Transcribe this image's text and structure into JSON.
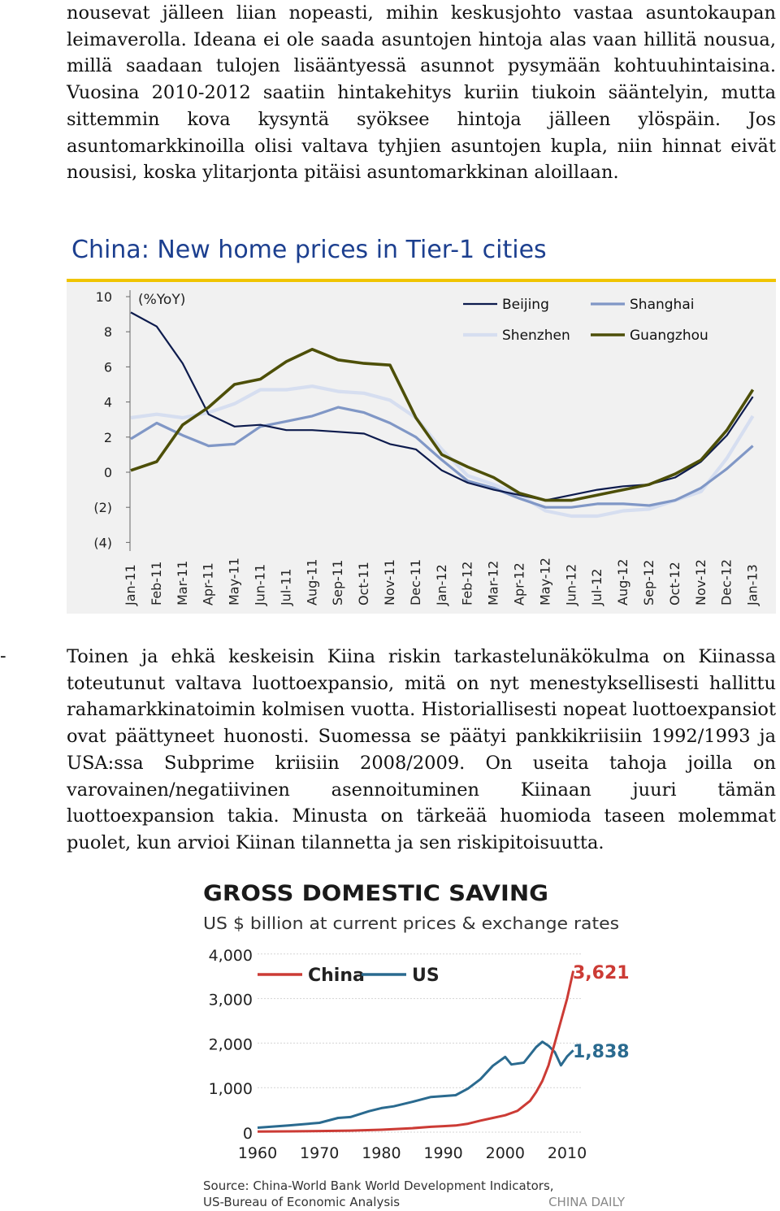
{
  "paragraph1": "nousevat jälleen liian nopeasti, mihin keskusjohto vastaa asuntokaupan leimaverolla. Ideana ei ole saada asuntojen hintoja alas vaan hillitä nousua, millä saadaan tulojen lisääntyessä asunnot pysymään kohtuuhintaisina. Vuosina 2010-2012 saatiin hintakehitys kuriin tiukoin sääntelyin, mutta sittemmin kova kysyntä syöksee hintoja jälleen ylöspäin. Jos asuntomarkkinoilla olisi valtava tyhjien asuntojen kupla, niin hinnat eivät nousisi, koska ylitarjonta pitäisi asuntomarkkinan aloillaan.",
  "bullet_dash": "-",
  "paragraph2": "Toinen ja ehkä keskeisin Kiina riskin tarkastelunäkökulma on Kiinassa toteutunut valtava luottoexpansio, mitä on nyt menestyksellisesti hallittu rahamarkkinatoimin kolmisen vuotta. Historiallisesti nopeat luottoexpansiot ovat päättyneet huonosti. Suomessa se päätyi pankkikriisiin 1992/1993 ja USA:ssa Subprime kriisiin 2008/2009. On useita tahoja joilla on varovainen/negatiivinen asennoituminen Kiinaan juuri tämän luottoexpansion takia. Minusta on tärkeää huomioda taseen molemmat puolet, kun arvioi Kiinan tilannetta ja sen riskipitoisuutta.",
  "chart_data": [
    {
      "type": "line",
      "title": "China: New home prices in Tier-1 cities",
      "unit_label": "(%YoY)",
      "categories": [
        "Jan-11",
        "Feb-11",
        "Mar-11",
        "Apr-11",
        "May-11",
        "Jun-11",
        "Jul-11",
        "Aug-11",
        "Sep-11",
        "Oct-11",
        "Nov-11",
        "Dec-11",
        "Jan-12",
        "Feb-12",
        "Mar-12",
        "Apr-12",
        "May-12",
        "Jun-12",
        "Jul-12",
        "Aug-12",
        "Sep-12",
        "Oct-12",
        "Nov-12",
        "Dec-12",
        "Jan-13"
      ],
      "y_ticks": [
        "10",
        "8",
        "6",
        "4",
        "2",
        "0",
        "(2)",
        "(4)"
      ],
      "ylim": [
        -4,
        10
      ],
      "legend_position": "top-right",
      "colors": {
        "Beijing": "#0d1b4d",
        "Shanghai": "#8097c6",
        "Shenzhen": "#d6def0",
        "Guangzhou": "#4d4f08",
        "title": "#1c3f8f",
        "rule": "#f0c400",
        "panel": "#f1f1f1"
      },
      "series": [
        {
          "name": "Beijing",
          "values": [
            9.1,
            8.3,
            6.2,
            3.3,
            2.6,
            2.7,
            2.4,
            2.4,
            2.3,
            2.2,
            1.6,
            1.3,
            0.1,
            -0.6,
            -1.0,
            -1.3,
            -1.6,
            -1.3,
            -1.0,
            -0.8,
            -0.7,
            -0.3,
            0.6,
            2.1,
            4.3
          ]
        },
        {
          "name": "Shanghai",
          "values": [
            1.9,
            2.8,
            2.1,
            1.5,
            1.6,
            2.6,
            2.9,
            3.2,
            3.7,
            3.4,
            2.8,
            2.0,
            0.7,
            -0.5,
            -0.9,
            -1.5,
            -2.0,
            -2.0,
            -1.8,
            -1.8,
            -1.9,
            -1.6,
            -0.9,
            0.2,
            1.5
          ]
        },
        {
          "name": "Shenzhen",
          "values": [
            3.1,
            3.3,
            3.1,
            3.4,
            3.9,
            4.7,
            4.7,
            4.9,
            4.6,
            4.5,
            4.1,
            3.1,
            1.3,
            -0.2,
            -0.7,
            -1.3,
            -2.2,
            -2.5,
            -2.5,
            -2.2,
            -2.1,
            -1.6,
            -1.1,
            0.8,
            3.2
          ]
        },
        {
          "name": "Guangzhou",
          "values": [
            0.1,
            0.6,
            2.7,
            3.7,
            5.0,
            5.3,
            6.3,
            7.0,
            6.4,
            6.2,
            6.1,
            3.1,
            1.0,
            0.3,
            -0.3,
            -1.2,
            -1.6,
            -1.6,
            -1.3,
            -1.0,
            -0.7,
            -0.1,
            0.7,
            2.4,
            4.7
          ]
        }
      ]
    },
    {
      "type": "line",
      "title": "GROSS DOMESTIC SAVING",
      "subtitle": "US $ billion at current prices & exchange rates",
      "y_ticks": [
        "4,000",
        "3,000",
        "2,000",
        "1,000",
        "0"
      ],
      "x_ticks": [
        "1960",
        "1970",
        "1980",
        "1990",
        "2000",
        "2010"
      ],
      "ylim": [
        0,
        4000
      ],
      "xlim": [
        1960,
        2011
      ],
      "legend_position": "top-left",
      "source_line1": "Source: China-World Bank World Development Indicators,",
      "source_line2": "US-Bureau of Economic Analysis",
      "credit": "CHINA DAILY",
      "colors": {
        "China": "#cc3b35",
        "US": "#2a6a8f"
      },
      "series": [
        {
          "name": "China",
          "end_label": "3,621",
          "x": [
            1960,
            1965,
            1970,
            1975,
            1980,
            1985,
            1988,
            1990,
            1992,
            1994,
            1996,
            1998,
            2000,
            2002,
            2004,
            2005,
            2006,
            2007,
            2008,
            2009,
            2010,
            2011
          ],
          "values": [
            15,
            18,
            25,
            35,
            55,
            90,
            120,
            135,
            150,
            190,
            260,
            320,
            380,
            480,
            700,
            900,
            1150,
            1500,
            2000,
            2500,
            3000,
            3621
          ]
        },
        {
          "name": "US",
          "end_label": "1,838",
          "x": [
            1960,
            1965,
            1970,
            1973,
            1975,
            1978,
            1980,
            1982,
            1985,
            1988,
            1990,
            1992,
            1994,
            1996,
            1998,
            2000,
            2001,
            2003,
            2005,
            2006,
            2007,
            2008,
            2009,
            2010,
            2011
          ],
          "values": [
            100,
            150,
            210,
            320,
            340,
            470,
            540,
            580,
            680,
            790,
            810,
            830,
            980,
            1190,
            1490,
            1690,
            1520,
            1560,
            1910,
            2030,
            1940,
            1800,
            1500,
            1700,
            1838
          ]
        }
      ]
    }
  ]
}
